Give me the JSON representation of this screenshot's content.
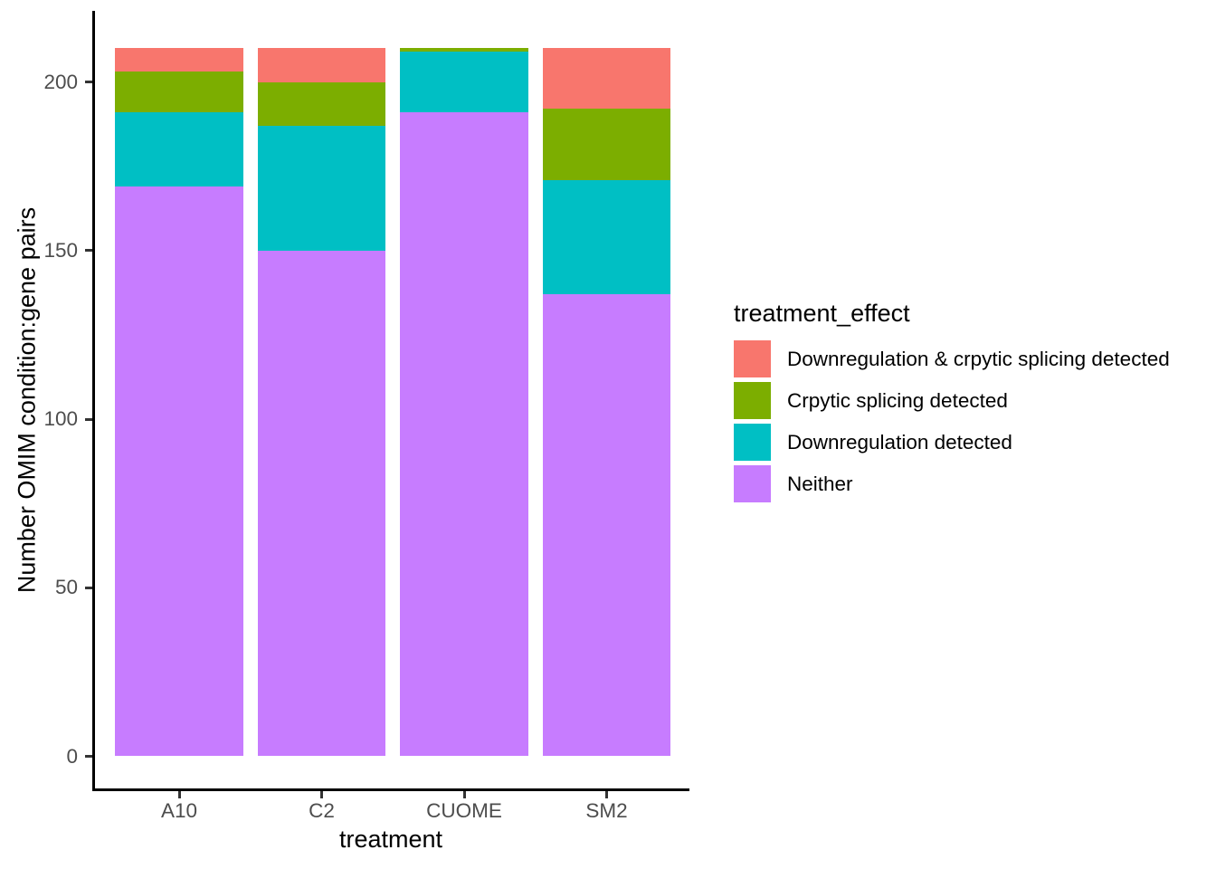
{
  "chart_data": {
    "type": "bar",
    "stacked": true,
    "title": "",
    "xlabel": "treatment",
    "ylabel": "Number OMIM condition:gene pairs",
    "categories": [
      "A10",
      "C2",
      "CUOME",
      "SM2"
    ],
    "series": [
      {
        "name": "Downregulation & crpytic splicing detected",
        "color": "#F8766D",
        "values": [
          7,
          10,
          0,
          18
        ]
      },
      {
        "name": "Crpytic splicing detected",
        "color": "#7CAE00",
        "values": [
          12,
          13,
          1,
          21
        ]
      },
      {
        "name": "Downregulation detected",
        "color": "#00BFC4",
        "values": [
          22,
          37,
          18,
          34
        ]
      },
      {
        "name": "Neither",
        "color": "#C77CFF",
        "values": [
          169,
          150,
          191,
          137
        ]
      }
    ],
    "totals": [
      210,
      210,
      210,
      210
    ],
    "y_ticks": [
      0,
      50,
      100,
      150,
      200
    ],
    "ylim": [
      0,
      221
    ],
    "grid": false,
    "legend": {
      "title": "treatment_effect",
      "position": "right"
    },
    "colors": {
      "background": "#FFFFFF",
      "axis_line": "#000000",
      "tick_mark": "#333333",
      "axis_text": "#4D4D4D",
      "title_text": "#000000"
    }
  }
}
